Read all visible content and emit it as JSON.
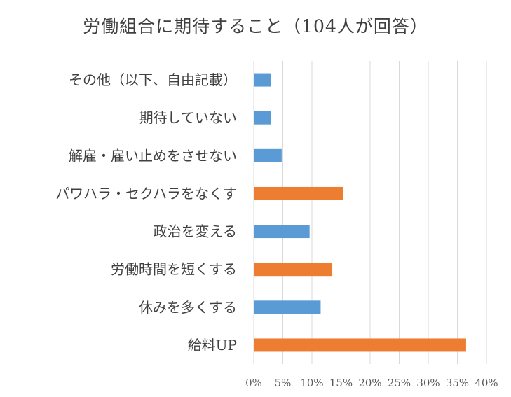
{
  "chart_data": {
    "type": "bar",
    "orientation": "horizontal",
    "title": "労働組合に期待すること（104人が回答）",
    "categories": [
      "その他（以下、自由記載）",
      "期待していない",
      "解雇・雇い止めをさせない",
      "パワハラ・セクハラをなくす",
      "政治を変える",
      "労働時間を短くする",
      "休みを多くする",
      "給料UP"
    ],
    "values": [
      2.9,
      2.9,
      4.8,
      15.4,
      9.6,
      13.5,
      11.5,
      36.5
    ],
    "bar_colors": [
      "#5B9BD5",
      "#5B9BD5",
      "#5B9BD5",
      "#ED7D31",
      "#5B9BD5",
      "#ED7D31",
      "#5B9BD5",
      "#ED7D31"
    ],
    "x_ticks": [
      "0%",
      "5%",
      "10%",
      "15%",
      "20%",
      "25%",
      "30%",
      "35%",
      "40%"
    ],
    "xlim": [
      0,
      40
    ],
    "grid": "vertical",
    "legend": "none"
  }
}
